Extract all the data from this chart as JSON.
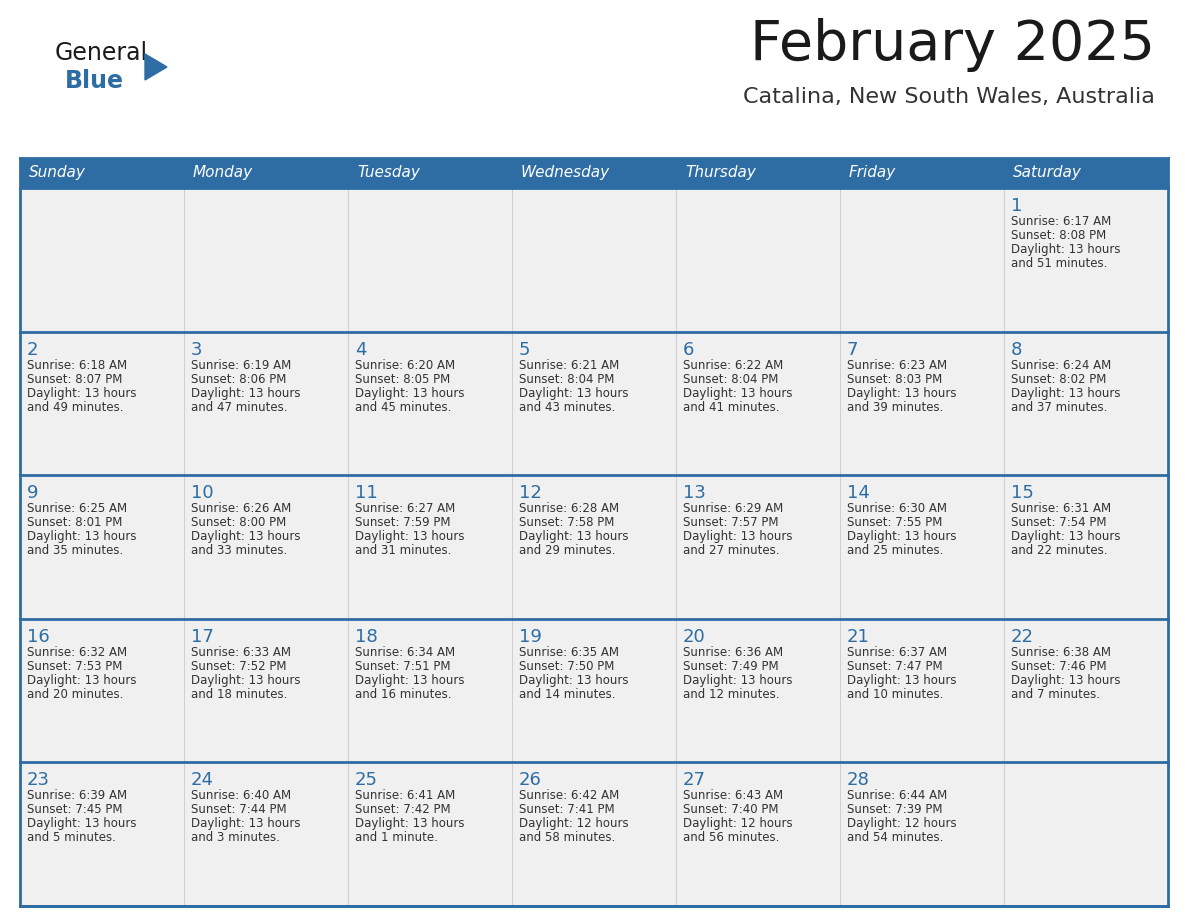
{
  "title": "February 2025",
  "subtitle": "Catalina, New South Wales, Australia",
  "days_of_week": [
    "Sunday",
    "Monday",
    "Tuesday",
    "Wednesday",
    "Thursday",
    "Friday",
    "Saturday"
  ],
  "header_bg": "#2E6DA4",
  "header_text_color": "#FFFFFF",
  "cell_bg": "#FFFFFF",
  "cell_bg_alt": "#F0F0F0",
  "row_divider_color": "#2E6DA4",
  "col_divider_color": "#D0D0D0",
  "title_color": "#1a1a1a",
  "subtitle_color": "#333333",
  "day_number_color": "#2E6DA4",
  "cell_text_color": "#333333",
  "logo_general_color": "#1a1a1a",
  "logo_blue_color": "#2E6DA4",
  "calendar_data": [
    [
      null,
      null,
      null,
      null,
      null,
      null,
      {
        "day": 1,
        "sunrise": "6:17 AM",
        "sunset": "8:08 PM",
        "daylight_line1": "Daylight: 13 hours",
        "daylight_line2": "and 51 minutes."
      }
    ],
    [
      {
        "day": 2,
        "sunrise": "6:18 AM",
        "sunset": "8:07 PM",
        "daylight_line1": "Daylight: 13 hours",
        "daylight_line2": "and 49 minutes."
      },
      {
        "day": 3,
        "sunrise": "6:19 AM",
        "sunset": "8:06 PM",
        "daylight_line1": "Daylight: 13 hours",
        "daylight_line2": "and 47 minutes."
      },
      {
        "day": 4,
        "sunrise": "6:20 AM",
        "sunset": "8:05 PM",
        "daylight_line1": "Daylight: 13 hours",
        "daylight_line2": "and 45 minutes."
      },
      {
        "day": 5,
        "sunrise": "6:21 AM",
        "sunset": "8:04 PM",
        "daylight_line1": "Daylight: 13 hours",
        "daylight_line2": "and 43 minutes."
      },
      {
        "day": 6,
        "sunrise": "6:22 AM",
        "sunset": "8:04 PM",
        "daylight_line1": "Daylight: 13 hours",
        "daylight_line2": "and 41 minutes."
      },
      {
        "day": 7,
        "sunrise": "6:23 AM",
        "sunset": "8:03 PM",
        "daylight_line1": "Daylight: 13 hours",
        "daylight_line2": "and 39 minutes."
      },
      {
        "day": 8,
        "sunrise": "6:24 AM",
        "sunset": "8:02 PM",
        "daylight_line1": "Daylight: 13 hours",
        "daylight_line2": "and 37 minutes."
      }
    ],
    [
      {
        "day": 9,
        "sunrise": "6:25 AM",
        "sunset": "8:01 PM",
        "daylight_line1": "Daylight: 13 hours",
        "daylight_line2": "and 35 minutes."
      },
      {
        "day": 10,
        "sunrise": "6:26 AM",
        "sunset": "8:00 PM",
        "daylight_line1": "Daylight: 13 hours",
        "daylight_line2": "and 33 minutes."
      },
      {
        "day": 11,
        "sunrise": "6:27 AM",
        "sunset": "7:59 PM",
        "daylight_line1": "Daylight: 13 hours",
        "daylight_line2": "and 31 minutes."
      },
      {
        "day": 12,
        "sunrise": "6:28 AM",
        "sunset": "7:58 PM",
        "daylight_line1": "Daylight: 13 hours",
        "daylight_line2": "and 29 minutes."
      },
      {
        "day": 13,
        "sunrise": "6:29 AM",
        "sunset": "7:57 PM",
        "daylight_line1": "Daylight: 13 hours",
        "daylight_line2": "and 27 minutes."
      },
      {
        "day": 14,
        "sunrise": "6:30 AM",
        "sunset": "7:55 PM",
        "daylight_line1": "Daylight: 13 hours",
        "daylight_line2": "and 25 minutes."
      },
      {
        "day": 15,
        "sunrise": "6:31 AM",
        "sunset": "7:54 PM",
        "daylight_line1": "Daylight: 13 hours",
        "daylight_line2": "and 22 minutes."
      }
    ],
    [
      {
        "day": 16,
        "sunrise": "6:32 AM",
        "sunset": "7:53 PM",
        "daylight_line1": "Daylight: 13 hours",
        "daylight_line2": "and 20 minutes."
      },
      {
        "day": 17,
        "sunrise": "6:33 AM",
        "sunset": "7:52 PM",
        "daylight_line1": "Daylight: 13 hours",
        "daylight_line2": "and 18 minutes."
      },
      {
        "day": 18,
        "sunrise": "6:34 AM",
        "sunset": "7:51 PM",
        "daylight_line1": "Daylight: 13 hours",
        "daylight_line2": "and 16 minutes."
      },
      {
        "day": 19,
        "sunrise": "6:35 AM",
        "sunset": "7:50 PM",
        "daylight_line1": "Daylight: 13 hours",
        "daylight_line2": "and 14 minutes."
      },
      {
        "day": 20,
        "sunrise": "6:36 AM",
        "sunset": "7:49 PM",
        "daylight_line1": "Daylight: 13 hours",
        "daylight_line2": "and 12 minutes."
      },
      {
        "day": 21,
        "sunrise": "6:37 AM",
        "sunset": "7:47 PM",
        "daylight_line1": "Daylight: 13 hours",
        "daylight_line2": "and 10 minutes."
      },
      {
        "day": 22,
        "sunrise": "6:38 AM",
        "sunset": "7:46 PM",
        "daylight_line1": "Daylight: 13 hours",
        "daylight_line2": "and 7 minutes."
      }
    ],
    [
      {
        "day": 23,
        "sunrise": "6:39 AM",
        "sunset": "7:45 PM",
        "daylight_line1": "Daylight: 13 hours",
        "daylight_line2": "and 5 minutes."
      },
      {
        "day": 24,
        "sunrise": "6:40 AM",
        "sunset": "7:44 PM",
        "daylight_line1": "Daylight: 13 hours",
        "daylight_line2": "and 3 minutes."
      },
      {
        "day": 25,
        "sunrise": "6:41 AM",
        "sunset": "7:42 PM",
        "daylight_line1": "Daylight: 13 hours",
        "daylight_line2": "and 1 minute."
      },
      {
        "day": 26,
        "sunrise": "6:42 AM",
        "sunset": "7:41 PM",
        "daylight_line1": "Daylight: 12 hours",
        "daylight_line2": "and 58 minutes."
      },
      {
        "day": 27,
        "sunrise": "6:43 AM",
        "sunset": "7:40 PM",
        "daylight_line1": "Daylight: 12 hours",
        "daylight_line2": "and 56 minutes."
      },
      {
        "day": 28,
        "sunrise": "6:44 AM",
        "sunset": "7:39 PM",
        "daylight_line1": "Daylight: 12 hours",
        "daylight_line2": "and 54 minutes."
      },
      null
    ]
  ]
}
